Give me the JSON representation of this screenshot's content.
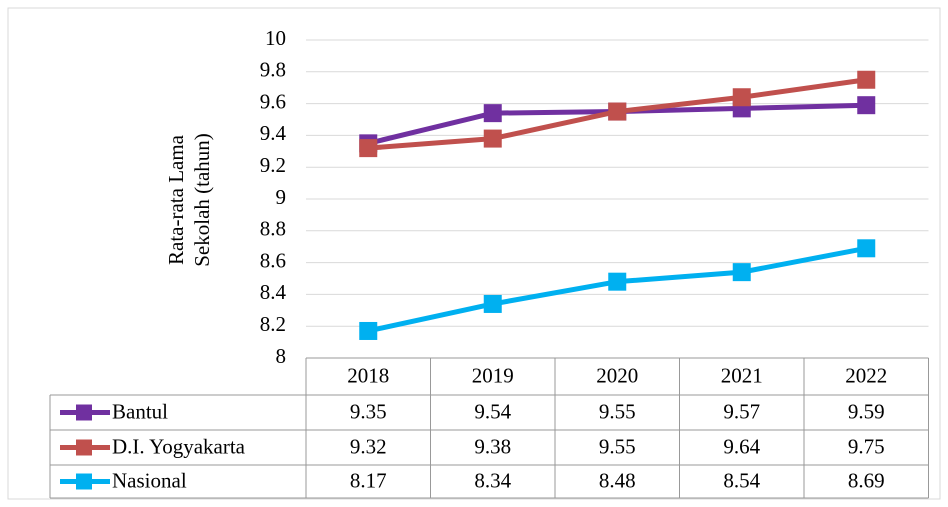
{
  "chart_data": {
    "type": "line",
    "y_label": [
      "Rata-rata Lama",
      "Sekolah (tahun)"
    ],
    "categories": [
      "2018",
      "2019",
      "2020",
      "2021",
      "2022"
    ],
    "series": [
      {
        "name": "Bantul",
        "color": "#7030a0",
        "values": [
          9.35,
          9.54,
          9.55,
          9.57,
          9.59
        ]
      },
      {
        "name": "D.I. Yogyakarta",
        "color": "#c0504d",
        "values": [
          9.32,
          9.38,
          9.55,
          9.64,
          9.75
        ]
      },
      {
        "name": "Nasional",
        "color": "#00b0f0",
        "values": [
          8.17,
          8.34,
          8.48,
          8.54,
          8.69
        ]
      }
    ],
    "ylim": [
      8,
      10
    ],
    "yticks": [
      8,
      8.2,
      8.4,
      8.6,
      8.8,
      9,
      9.2,
      9.4,
      9.6,
      9.8,
      10
    ],
    "grid": true
  }
}
